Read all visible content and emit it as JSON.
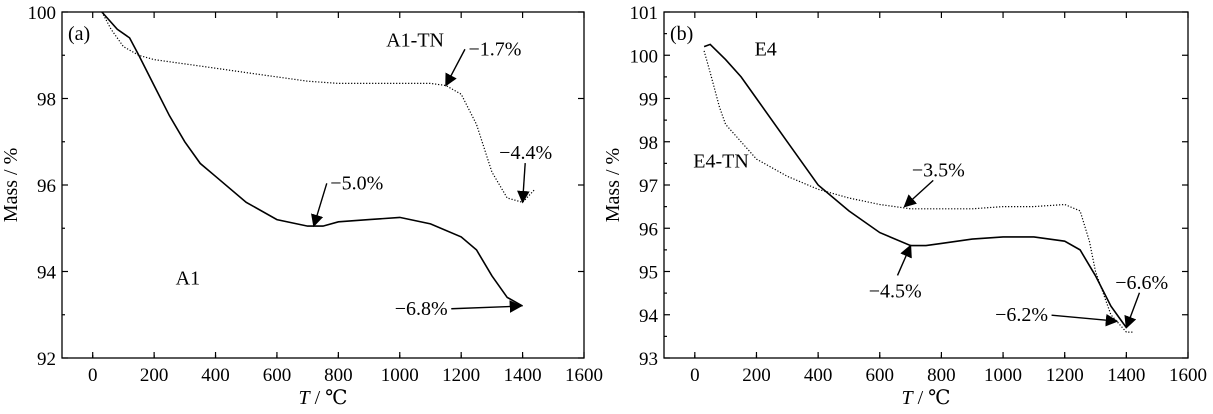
{
  "chart_data": [
    {
      "type": "line",
      "panel_label": "(a)",
      "xlabel_italic": "T",
      "xlabel_unit": " / ℃",
      "ylabel": "Mass / %",
      "xlim": [
        -100,
        1600
      ],
      "ylim": [
        92,
        100
      ],
      "xticks": [
        "0",
        "200",
        "400",
        "600",
        "800",
        "1000",
        "1200",
        "1400",
        "1600"
      ],
      "yticks": [
        "92",
        "94",
        "96",
        "98",
        "100"
      ],
      "series": [
        {
          "name": "A1",
          "style": "solid",
          "x": [
            30,
            80,
            120,
            150,
            200,
            250,
            300,
            350,
            400,
            500,
            600,
            700,
            750,
            800,
            900,
            1000,
            1100,
            1200,
            1250,
            1300,
            1350,
            1400
          ],
          "y": [
            100.0,
            99.6,
            99.4,
            99.0,
            98.3,
            97.6,
            97.0,
            96.5,
            96.2,
            95.6,
            95.2,
            95.05,
            95.05,
            95.15,
            95.2,
            95.25,
            95.1,
            94.8,
            94.5,
            93.9,
            93.4,
            93.2
          ]
        },
        {
          "name": "A1-TN",
          "style": "dotted",
          "x": [
            30,
            60,
            100,
            150,
            200,
            300,
            400,
            500,
            600,
            700,
            800,
            900,
            1000,
            1100,
            1150,
            1200,
            1250,
            1300,
            1350,
            1400,
            1440
          ],
          "y": [
            100.0,
            99.6,
            99.2,
            99.0,
            98.9,
            98.8,
            98.7,
            98.6,
            98.5,
            98.4,
            98.35,
            98.35,
            98.35,
            98.35,
            98.3,
            98.1,
            97.4,
            96.3,
            95.7,
            95.6,
            95.9
          ]
        }
      ],
      "annotations": [
        {
          "text": "A1-TN",
          "kind": "label",
          "x": 1050,
          "y": 99.2
        },
        {
          "text": "A1",
          "kind": "label",
          "x": 310,
          "y": 93.7
        },
        {
          "text": "−1.7%",
          "kind": "arrow",
          "x": 1310,
          "y": 99.0,
          "target_x": 1150,
          "target_y": 98.3
        },
        {
          "text": "−4.4%",
          "kind": "arrow",
          "x": 1410,
          "y": 96.6,
          "target_x": 1400,
          "target_y": 95.6
        },
        {
          "text": "−5.0%",
          "kind": "arrow",
          "x": 860,
          "y": 95.9,
          "target_x": 720,
          "target_y": 95.05
        },
        {
          "text": "−6.8%",
          "kind": "arrow",
          "x": 1070,
          "y": 93.0,
          "target_x": 1395,
          "target_y": 93.2
        }
      ]
    },
    {
      "type": "line",
      "panel_label": "(b)",
      "xlabel_italic": "T",
      "xlabel_unit": " / ℃",
      "ylabel": "Mass / %",
      "xlim": [
        -100,
        1600
      ],
      "ylim": [
        93,
        101
      ],
      "xticks": [
        "0",
        "200",
        "400",
        "600",
        "800",
        "1000",
        "1200",
        "1400",
        "1600"
      ],
      "yticks": [
        "93",
        "94",
        "95",
        "96",
        "97",
        "98",
        "99",
        "100",
        "101"
      ],
      "series": [
        {
          "name": "E4",
          "style": "solid",
          "x": [
            30,
            50,
            100,
            150,
            200,
            300,
            400,
            500,
            600,
            700,
            750,
            800,
            900,
            1000,
            1100,
            1200,
            1250,
            1300,
            1350,
            1380,
            1400
          ],
          "y": [
            100.2,
            100.25,
            99.9,
            99.5,
            99.0,
            98.0,
            97.0,
            96.4,
            95.9,
            95.6,
            95.6,
            95.65,
            95.75,
            95.8,
            95.8,
            95.7,
            95.5,
            94.9,
            94.2,
            93.9,
            93.7
          ]
        },
        {
          "name": "E4-TN",
          "style": "dotted",
          "x": [
            30,
            50,
            80,
            100,
            150,
            200,
            300,
            400,
            500,
            600,
            700,
            800,
            900,
            1000,
            1100,
            1200,
            1250,
            1280,
            1300,
            1350,
            1400,
            1420
          ],
          "y": [
            100.1,
            99.6,
            98.8,
            98.4,
            98.0,
            97.6,
            97.2,
            96.9,
            96.7,
            96.55,
            96.45,
            96.45,
            96.45,
            96.5,
            96.5,
            96.55,
            96.4,
            95.7,
            95.0,
            94.0,
            93.6,
            93.6
          ]
        }
      ],
      "annotations": [
        {
          "text": "E4",
          "kind": "label",
          "x": 230,
          "y": 100.0
        },
        {
          "text": "E4-TN",
          "kind": "label",
          "x": 85,
          "y": 97.4
        },
        {
          "text": "−3.5%",
          "kind": "arrow",
          "x": 790,
          "y": 97.2,
          "target_x": 680,
          "target_y": 96.5
        },
        {
          "text": "−4.5%",
          "kind": "arrow",
          "x": 650,
          "y": 94.4,
          "target_x": 700,
          "target_y": 95.6
        },
        {
          "text": "−6.6%",
          "kind": "arrow",
          "x": 1450,
          "y": 94.6,
          "target_x": 1400,
          "target_y": 93.7
        },
        {
          "text": "−6.2%",
          "kind": "arrow",
          "x": 1060,
          "y": 93.85,
          "target_x": 1370,
          "target_y": 93.85
        }
      ]
    }
  ]
}
